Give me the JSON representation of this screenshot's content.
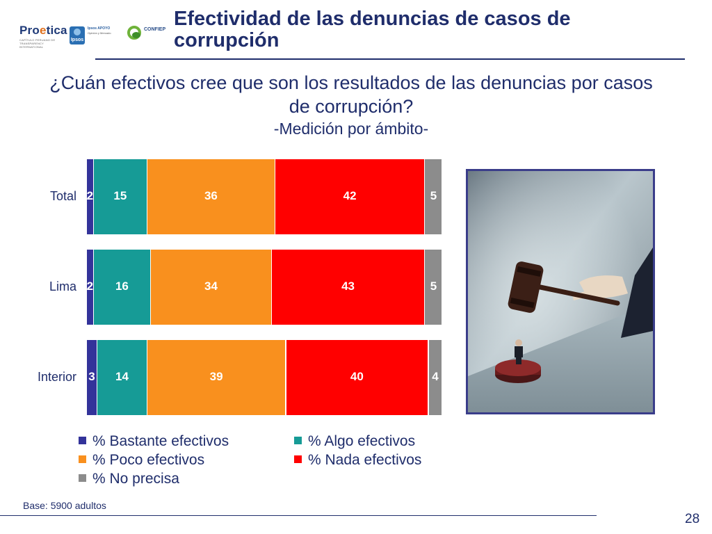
{
  "header": {
    "title": "Efectividad de las denuncias de casos de corrupción",
    "logos": {
      "proetica": {
        "word_a": "Pro",
        "word_b": "e",
        "word_c": "tica",
        "sub": "CAPÍTULO PERUANO DE TRANSPARENCY INTERNATIONAL"
      },
      "ipsos": {
        "badge": "Ipsos",
        "line1": "Ipsos APOYO",
        "line2": "Opinión y Mercado"
      },
      "confiep": {
        "name": "CONFIEP"
      }
    }
  },
  "question": {
    "line1": "¿Cuán efectivos cree que son los resultados de las denuncias por casos",
    "line2": "de corrupción?",
    "subtitle": "-Medición por ámbito-"
  },
  "chart_data": {
    "type": "bar",
    "orientation": "horizontal",
    "stacked": true,
    "categories": [
      "Total",
      "Lima",
      "Interior"
    ],
    "series": [
      {
        "name": "% Bastante efectivos",
        "color": "#33339a",
        "values": [
          2,
          2,
          3
        ]
      },
      {
        "name": "% Algo efectivos",
        "color": "#169b96",
        "values": [
          15,
          16,
          14
        ]
      },
      {
        "name": "% Poco efectivos",
        "color": "#f9901e",
        "values": [
          36,
          34,
          39
        ]
      },
      {
        "name": "% Nada efectivos",
        "color": "#ff0000",
        "values": [
          42,
          43,
          40
        ]
      },
      {
        "name": "% No precisa",
        "color": "#8c8c8c",
        "values": [
          5,
          5,
          4
        ]
      }
    ]
  },
  "legend_columns": [
    [
      0,
      2,
      4
    ],
    [
      1,
      3
    ]
  ],
  "footer": {
    "base": "Base: 5900 adultos",
    "page_number": "28"
  },
  "image": {
    "icon": "gavel-photo",
    "alt": "judge gavel over small man"
  }
}
